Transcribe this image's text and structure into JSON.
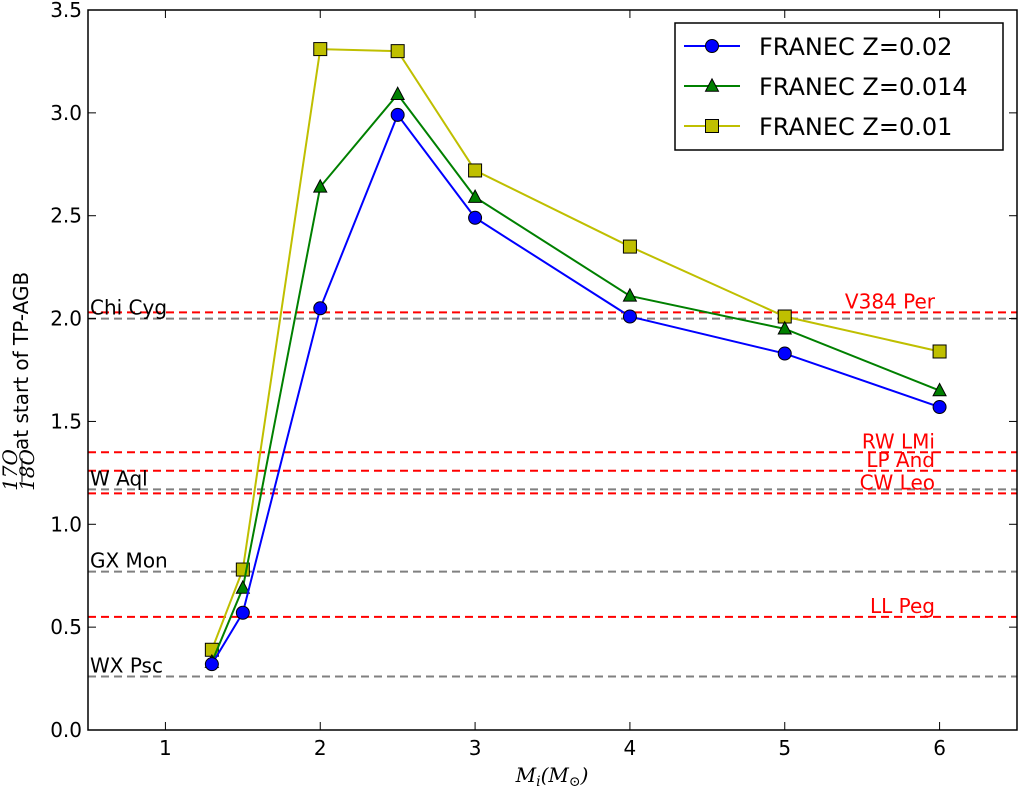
{
  "chart_data": {
    "type": "line",
    "xlabel": "M_i(M_⊙)",
    "xlabel_main": "M",
    "xlabel_sub": "i",
    "xlabel_paren": "(M",
    "xlabel_sun": "⊙",
    "xlabel_close": ")",
    "ylabel_frac_num": "17O",
    "ylabel_frac_den": "18O",
    "ylabel_text": "at start of TP-AGB",
    "xlim": [
      0.5,
      6.5
    ],
    "ylim": [
      0.0,
      3.5
    ],
    "xticks": [
      1,
      2,
      3,
      4,
      5,
      6
    ],
    "yticks": [
      0.0,
      0.5,
      1.0,
      1.5,
      2.0,
      2.5,
      3.0,
      3.5
    ],
    "grid": false,
    "legend_position": "top-right",
    "series": [
      {
        "name": "FRANEC Z=0.02",
        "color": "#0000ff",
        "marker": "circle",
        "x": [
          1.3,
          1.5,
          2.0,
          2.5,
          3.0,
          4.0,
          5.0,
          6.0
        ],
        "y": [
          0.32,
          0.57,
          2.05,
          2.99,
          2.49,
          2.01,
          1.83,
          1.57
        ]
      },
      {
        "name": "FRANEC Z=0.014",
        "color": "#008000",
        "marker": "triangle",
        "x": [
          1.3,
          1.5,
          2.0,
          2.5,
          3.0,
          4.0,
          5.0,
          6.0
        ],
        "y": [
          0.33,
          0.69,
          2.64,
          3.09,
          2.59,
          2.11,
          1.95,
          1.65
        ]
      },
      {
        "name": "FRANEC Z=0.01",
        "color": "#bfbf00",
        "marker": "square",
        "x": [
          1.3,
          1.5,
          2.0,
          2.5,
          3.0,
          4.0,
          5.0,
          6.0
        ],
        "y": [
          0.39,
          0.78,
          3.31,
          3.3,
          2.72,
          2.35,
          2.01,
          1.84
        ]
      }
    ],
    "reference_lines": [
      {
        "label": "Chi Cyg",
        "value": 2.0,
        "color": "#808080",
        "label_side": "left"
      },
      {
        "label": "W Aql",
        "value": 1.17,
        "color": "#808080",
        "label_side": "left"
      },
      {
        "label": "GX Mon",
        "value": 0.77,
        "color": "#808080",
        "label_side": "left"
      },
      {
        "label": "WX Psc",
        "value": 0.26,
        "color": "#808080",
        "label_side": "left"
      },
      {
        "label": "V384 Per",
        "value": 2.03,
        "color": "#ff0000",
        "label_side": "right"
      },
      {
        "label": "RW LMi",
        "value": 1.35,
        "color": "#ff0000",
        "label_side": "right"
      },
      {
        "label": "LP And",
        "value": 1.26,
        "color": "#ff0000",
        "label_side": "right"
      },
      {
        "label": "CW Leo",
        "value": 1.15,
        "color": "#ff0000",
        "label_side": "right"
      },
      {
        "label": "LL Peg",
        "value": 0.55,
        "color": "#ff0000",
        "label_side": "right"
      }
    ]
  }
}
